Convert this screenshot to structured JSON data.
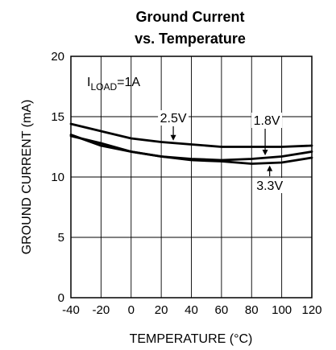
{
  "chart_data": {
    "type": "line",
    "title": [
      "Ground Current",
      "vs. Temperature"
    ],
    "xlabel": "TEMPERATURE (°C)",
    "ylabel": "GROUND CURRENT (mA)",
    "xlim": [
      -40,
      120
    ],
    "ylim": [
      0,
      20
    ],
    "xticks": [
      -40,
      -20,
      0,
      20,
      40,
      60,
      80,
      100,
      120
    ],
    "yticks": [
      0,
      5,
      10,
      15,
      20
    ],
    "grid": true,
    "condition": {
      "prefix": "I",
      "subscript": "LOAD",
      "suffix": "=1A"
    },
    "series": [
      {
        "name": "2.5V",
        "x": [
          -40,
          -20,
          0,
          20,
          40,
          60,
          80,
          100,
          120
        ],
        "y": [
          14.4,
          13.8,
          13.2,
          12.9,
          12.7,
          12.5,
          12.5,
          12.5,
          12.6
        ]
      },
      {
        "name": "1.8V",
        "x": [
          -40,
          -20,
          0,
          20,
          40,
          60,
          80,
          100,
          120
        ],
        "y": [
          13.4,
          12.8,
          12.1,
          11.7,
          11.5,
          11.4,
          11.5,
          11.7,
          12.1
        ]
      },
      {
        "name": "3.3V",
        "x": [
          -40,
          -20,
          0,
          20,
          40,
          60,
          80,
          100,
          120
        ],
        "y": [
          13.5,
          12.6,
          12.1,
          11.7,
          11.4,
          11.3,
          11.1,
          11.2,
          11.6
        ]
      }
    ],
    "annotations": [
      {
        "text": "2.5V",
        "series": "2.5V",
        "at_x": 28
      },
      {
        "text": "1.8V",
        "series": "1.8V",
        "at_x": 89
      },
      {
        "text": "3.3V",
        "series": "3.3V",
        "at_x": 92
      }
    ]
  }
}
